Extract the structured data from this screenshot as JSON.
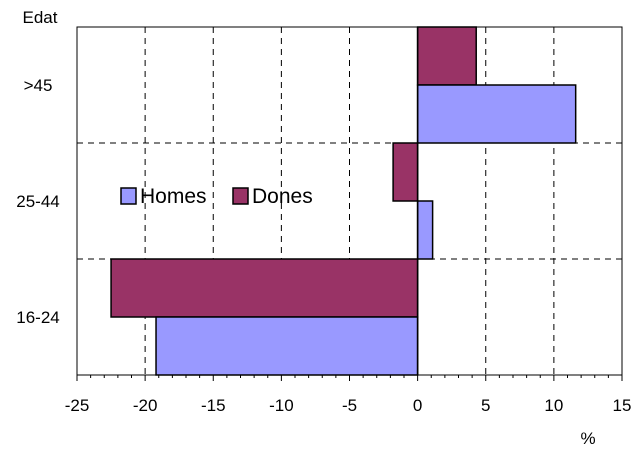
{
  "chart_data": {
    "type": "bar",
    "orientation": "horizontal",
    "categories": [
      ">45",
      "25-44",
      "16-24"
    ],
    "series": [
      {
        "name": "Homes",
        "values": [
          11.6,
          1.1,
          -19.2
        ],
        "color": "#9999ff"
      },
      {
        "name": "Dones",
        "values": [
          4.3,
          -1.8,
          -22.5
        ],
        "color": "#993366"
      }
    ],
    "title": "",
    "xlabel": "%",
    "ylabel": "Edat",
    "xlim": [
      -25,
      15
    ],
    "xticks": [
      -25,
      -20,
      -15,
      -10,
      -5,
      0,
      5,
      10,
      15
    ],
    "grid": true,
    "legend": "center-left"
  }
}
